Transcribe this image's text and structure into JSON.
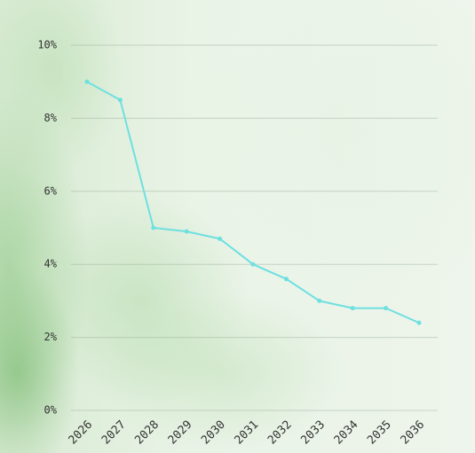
{
  "chart_data": {
    "type": "line",
    "categories": [
      "2026",
      "2027",
      "2028",
      "2029",
      "2030",
      "2031",
      "2032",
      "2033",
      "2034",
      "2035",
      "2036"
    ],
    "values": [
      9.0,
      8.5,
      5.0,
      4.9,
      4.7,
      4.0,
      3.6,
      3.0,
      2.8,
      2.8,
      2.4
    ],
    "color": "#6ee0e0",
    "ylim": [
      0,
      10
    ],
    "yticks": [
      {
        "value": 0,
        "label": "0%"
      },
      {
        "value": 2,
        "label": "2%"
      },
      {
        "value": 4,
        "label": "4%"
      },
      {
        "value": 6,
        "label": "6%"
      },
      {
        "value": 8,
        "label": "8%"
      },
      {
        "value": 10,
        "label": "10%"
      }
    ],
    "grid": true
  }
}
